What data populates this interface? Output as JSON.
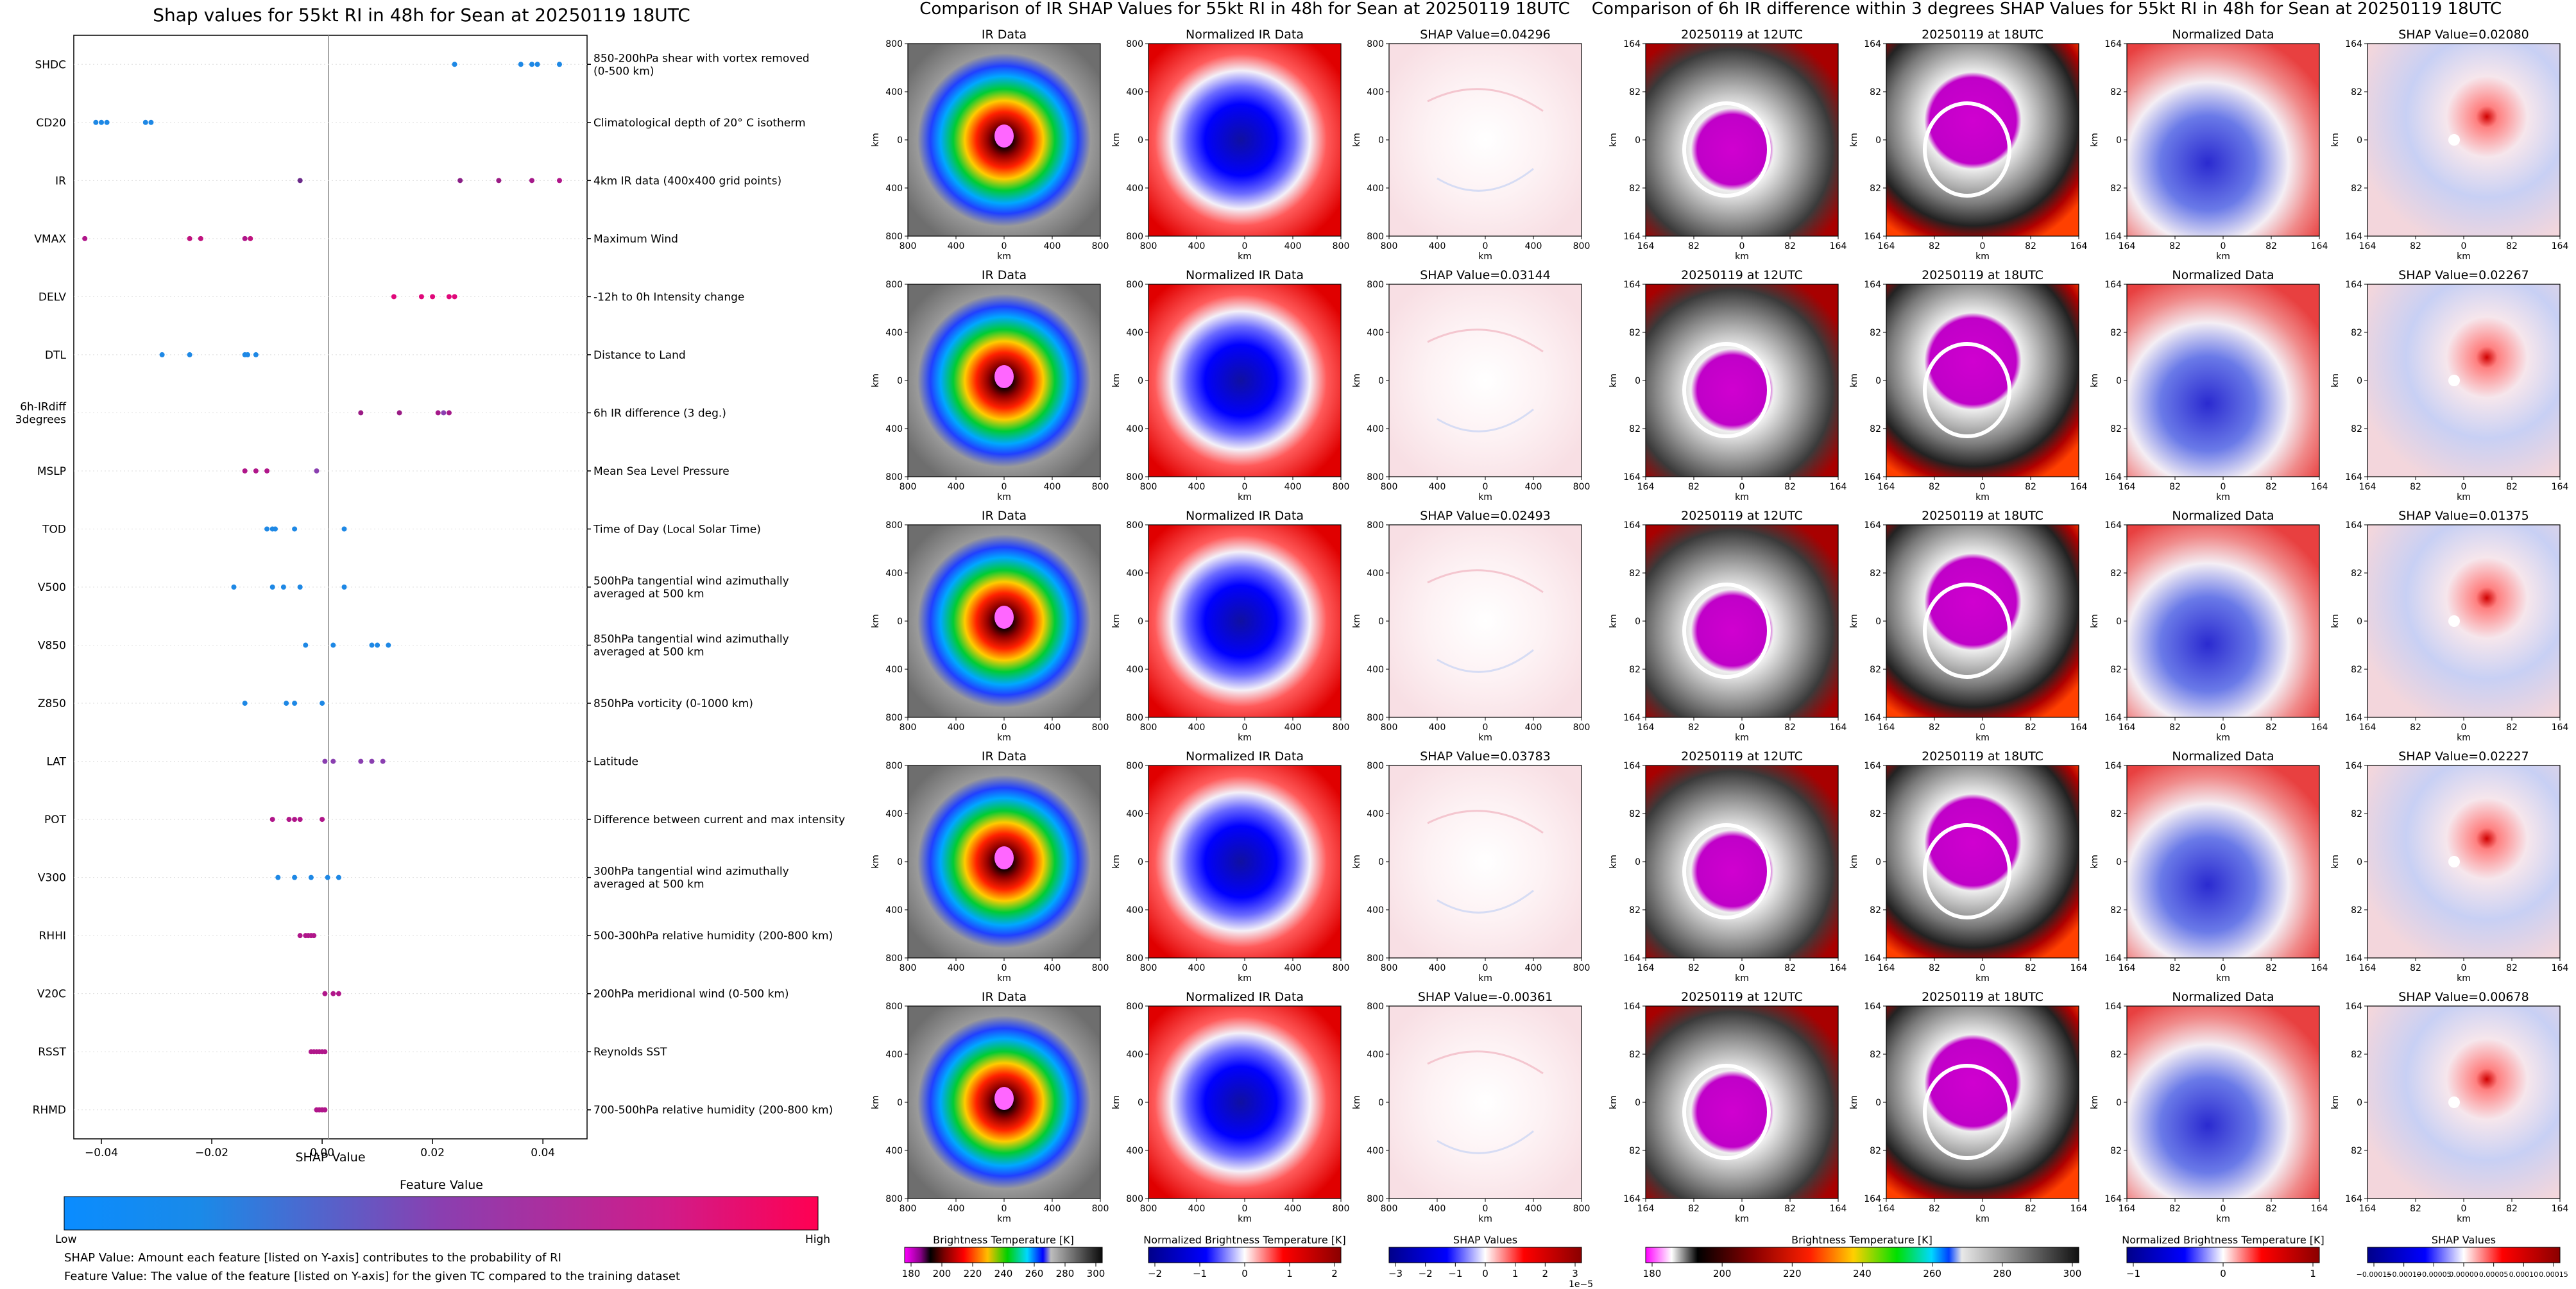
{
  "left_panel": {
    "title": "Shap values for 55kt RI in 48h for Sean at 20250119 18UTC",
    "xlabel": "SHAP Value",
    "colorbar_title": "Feature Value",
    "low_label": "Low",
    "high_label": "High",
    "footnote_1": "SHAP Value: Amount each feature [listed on Y-axis] contributes to the probability of RI",
    "footnote_2": "Feature Value: The value of the feature [listed on Y-axis] for the given TC compared to the training dataset"
  },
  "ir_section": {
    "title": "Comparison of IR SHAP Values for 55kt RI in 48h for Sean at 20250119 18UTC",
    "col_titles": [
      "IR Data",
      "Normalized IR Data"
    ],
    "shap_titles": [
      "SHAP Value=0.04296",
      "SHAP Value=0.03144",
      "SHAP Value=0.02493",
      "SHAP Value=0.03783",
      "SHAP Value=-0.00361"
    ],
    "ticks": [
      "800",
      "400",
      "0",
      "400",
      "800"
    ],
    "axis_label": "km",
    "cb_labels": [
      "Brightness Temperature [K]",
      "Normalized Brightness Temperature [K]",
      "SHAP Values"
    ],
    "cb1_ticks": [
      "180",
      "200",
      "220",
      "240",
      "260",
      "280",
      "300"
    ],
    "cb2_ticks": [
      "−2",
      "−1",
      "0",
      "1",
      "2"
    ],
    "cb3_ticks": [
      "−3",
      "−2",
      "−1",
      "0",
      "1",
      "2",
      "3"
    ],
    "cb3_exponent": "1e−5"
  },
  "diff_section": {
    "title": "Comparison of 6h IR difference within 3 degrees SHAP Values for 55kt RI in 48h for Sean at 20250119 18UTC",
    "col_titles": [
      "20250119 at 12UTC",
      "20250119 at 18UTC",
      "Normalized Data"
    ],
    "shap_titles": [
      "SHAP Value=0.02080",
      "SHAP Value=0.02267",
      "SHAP Value=0.01375",
      "SHAP Value=0.02227",
      "SHAP Value=0.00678"
    ],
    "ticks": [
      "164",
      "82",
      "0",
      "82",
      "164"
    ],
    "axis_label": "km",
    "cb_labels": [
      "Brightness Temperature [K]",
      "Normalized Brightness Temperature [K]",
      "SHAP Values"
    ],
    "cb1_ticks": [
      "180",
      "200",
      "220",
      "240",
      "260",
      "280",
      "300"
    ],
    "cb2_ticks": [
      "−1",
      "0",
      "1"
    ],
    "cb3_ticks": [
      "−0.00015",
      "−0.00010",
      "−0.00005",
      "0.00000",
      "0.00005",
      "0.00010",
      "0.00015"
    ]
  },
  "chart_data": {
    "type": "scatter",
    "title": "Shap values for 55kt RI in 48h for Sean at 20250119 18UTC",
    "xlabel": "SHAP Value",
    "xlim": [
      -0.045,
      0.048
    ],
    "xticks": [
      -0.04,
      -0.02,
      0.0,
      0.02,
      0.04
    ],
    "xtick_labels": [
      "−0.04",
      "−0.02",
      "0.00",
      "0.02",
      "0.04"
    ],
    "features": [
      {
        "name": "SHDC",
        "desc": "850-200hPa shear with vortex removed (0-500 km)",
        "points": [
          0.024,
          0.036,
          0.038,
          0.039,
          0.043
        ],
        "colors": [
          "#1e88e5",
          "#1e88e5",
          "#1e88e5",
          "#1e88e5",
          "#1e88e5"
        ]
      },
      {
        "name": "CD20",
        "desc": "Climatological depth of 20° C isotherm",
        "points": [
          -0.041,
          -0.04,
          -0.039,
          -0.032,
          -0.031
        ],
        "colors": [
          "#1e88e5",
          "#1e88e5",
          "#1e88e5",
          "#1e88e5",
          "#1e88e5"
        ]
      },
      {
        "name": "IR",
        "desc": "4km IR data (400x400 grid points)",
        "points": [
          -0.004,
          0.025,
          0.032,
          0.038,
          0.043
        ],
        "colors": [
          "#6b2a8a",
          "#8a1f87",
          "#9a1b85",
          "#a5198a",
          "#b0168a"
        ]
      },
      {
        "name": "VMAX",
        "desc": "Maximum Wind",
        "points": [
          -0.043,
          -0.024,
          -0.022,
          -0.014,
          -0.013
        ],
        "colors": [
          "#b0168a",
          "#c0137f",
          "#c0137f",
          "#b0168a",
          "#c0137f"
        ]
      },
      {
        "name": "DELV",
        "desc": "-12h to 0h Intensity change",
        "points": [
          0.013,
          0.018,
          0.02,
          0.023,
          0.024
        ],
        "colors": [
          "#e0087a",
          "#e0087a",
          "#e0087a",
          "#e0087a",
          "#e0087a"
        ]
      },
      {
        "name": "DTL",
        "desc": "Distance to Land",
        "points": [
          -0.029,
          -0.024,
          -0.014,
          -0.0135,
          -0.012
        ],
        "colors": [
          "#1e88e5",
          "#1e88e5",
          "#1e88e5",
          "#1e88e5",
          "#1e88e5"
        ]
      },
      {
        "name": "6h-IRdiff\n3degrees",
        "desc": "6h IR difference (3 deg.)",
        "points": [
          0.007,
          0.014,
          0.021,
          0.022,
          0.023
        ],
        "colors": [
          "#9a1b85",
          "#9a1b85",
          "#a5198a",
          "#8a3fb0",
          "#a5198a"
        ]
      },
      {
        "name": "MSLP",
        "desc": "Mean Sea Level Pressure",
        "points": [
          -0.014,
          -0.012,
          -0.01,
          -0.001
        ],
        "colors": [
          "#b0168a",
          "#b0168a",
          "#b0168a",
          "#8a3fb0"
        ]
      },
      {
        "name": "TOD",
        "desc": "Time of Day (Local Solar Time)",
        "points": [
          -0.01,
          -0.009,
          -0.0085,
          -0.005,
          0.004
        ],
        "colors": [
          "#1e88e5",
          "#1e88e5",
          "#1e88e5",
          "#1e88e5",
          "#1e88e5"
        ]
      },
      {
        "name": "V500",
        "desc": "500hPa tangential wind azimuthally averaged at 500 km",
        "points": [
          -0.016,
          -0.009,
          -0.007,
          -0.004,
          0.004
        ],
        "colors": [
          "#1e88e5",
          "#1e88e5",
          "#1e88e5",
          "#1e88e5",
          "#1e88e5"
        ]
      },
      {
        "name": "V850",
        "desc": "850hPa tangential wind azimuthally averaged at 500 km",
        "points": [
          -0.003,
          0.002,
          0.009,
          0.01,
          0.012
        ],
        "colors": [
          "#1e88e5",
          "#1e88e5",
          "#1e88e5",
          "#1e88e5",
          "#1e88e5"
        ]
      },
      {
        "name": "Z850",
        "desc": "850hPa vorticity (0-1000 km)",
        "points": [
          -0.014,
          -0.0065,
          -0.005,
          0.0
        ],
        "colors": [
          "#1e88e5",
          "#1e88e5",
          "#1e88e5",
          "#1e88e5"
        ]
      },
      {
        "name": "LAT",
        "desc": "Latitude",
        "points": [
          0.0005,
          0.002,
          0.007,
          0.009,
          0.011
        ],
        "colors": [
          "#8a3fb0",
          "#8a3fb0",
          "#8a3fb0",
          "#8a3fb0",
          "#8a3fb0"
        ]
      },
      {
        "name": "POT",
        "desc": "Difference between current and max intensity",
        "points": [
          -0.009,
          -0.006,
          -0.005,
          -0.004,
          0.0
        ],
        "colors": [
          "#b0168a",
          "#b0168a",
          "#b0168a",
          "#b0168a",
          "#b0168a"
        ]
      },
      {
        "name": "V300",
        "desc": "300hPa tangential wind azimuthally averaged at 500 km",
        "points": [
          -0.008,
          -0.005,
          -0.002,
          0.001,
          0.003
        ],
        "colors": [
          "#1e88e5",
          "#1e88e5",
          "#1e88e5",
          "#1e88e5",
          "#1e88e5"
        ]
      },
      {
        "name": "RHHI",
        "desc": "500-300hPa relative humidity (200-800 km)",
        "points": [
          -0.004,
          -0.003,
          -0.0025,
          -0.002,
          -0.0015
        ],
        "colors": [
          "#b0168a",
          "#b0168a",
          "#b0168a",
          "#b0168a",
          "#b0168a"
        ]
      },
      {
        "name": "V20C",
        "desc": "200hPa meridional wind (0-500 km)",
        "points": [
          0.0005,
          0.002,
          0.003
        ],
        "colors": [
          "#b0168a",
          "#b0168a",
          "#b0168a"
        ]
      },
      {
        "name": "RSST",
        "desc": "Reynolds SST",
        "points": [
          -0.002,
          -0.0015,
          -0.001,
          -0.0005,
          0.0,
          0.0005
        ],
        "colors": [
          "#b0168a",
          "#b0168a",
          "#b0168a",
          "#b0168a",
          "#b0168a",
          "#b0168a"
        ]
      },
      {
        "name": "RHMD",
        "desc": "700-500hPa relative humidity (200-800 km)",
        "points": [
          -0.001,
          -0.0005,
          0.0,
          0.0005
        ],
        "colors": [
          "#b0168a",
          "#b0168a",
          "#b0168a",
          "#b0168a"
        ]
      }
    ]
  }
}
